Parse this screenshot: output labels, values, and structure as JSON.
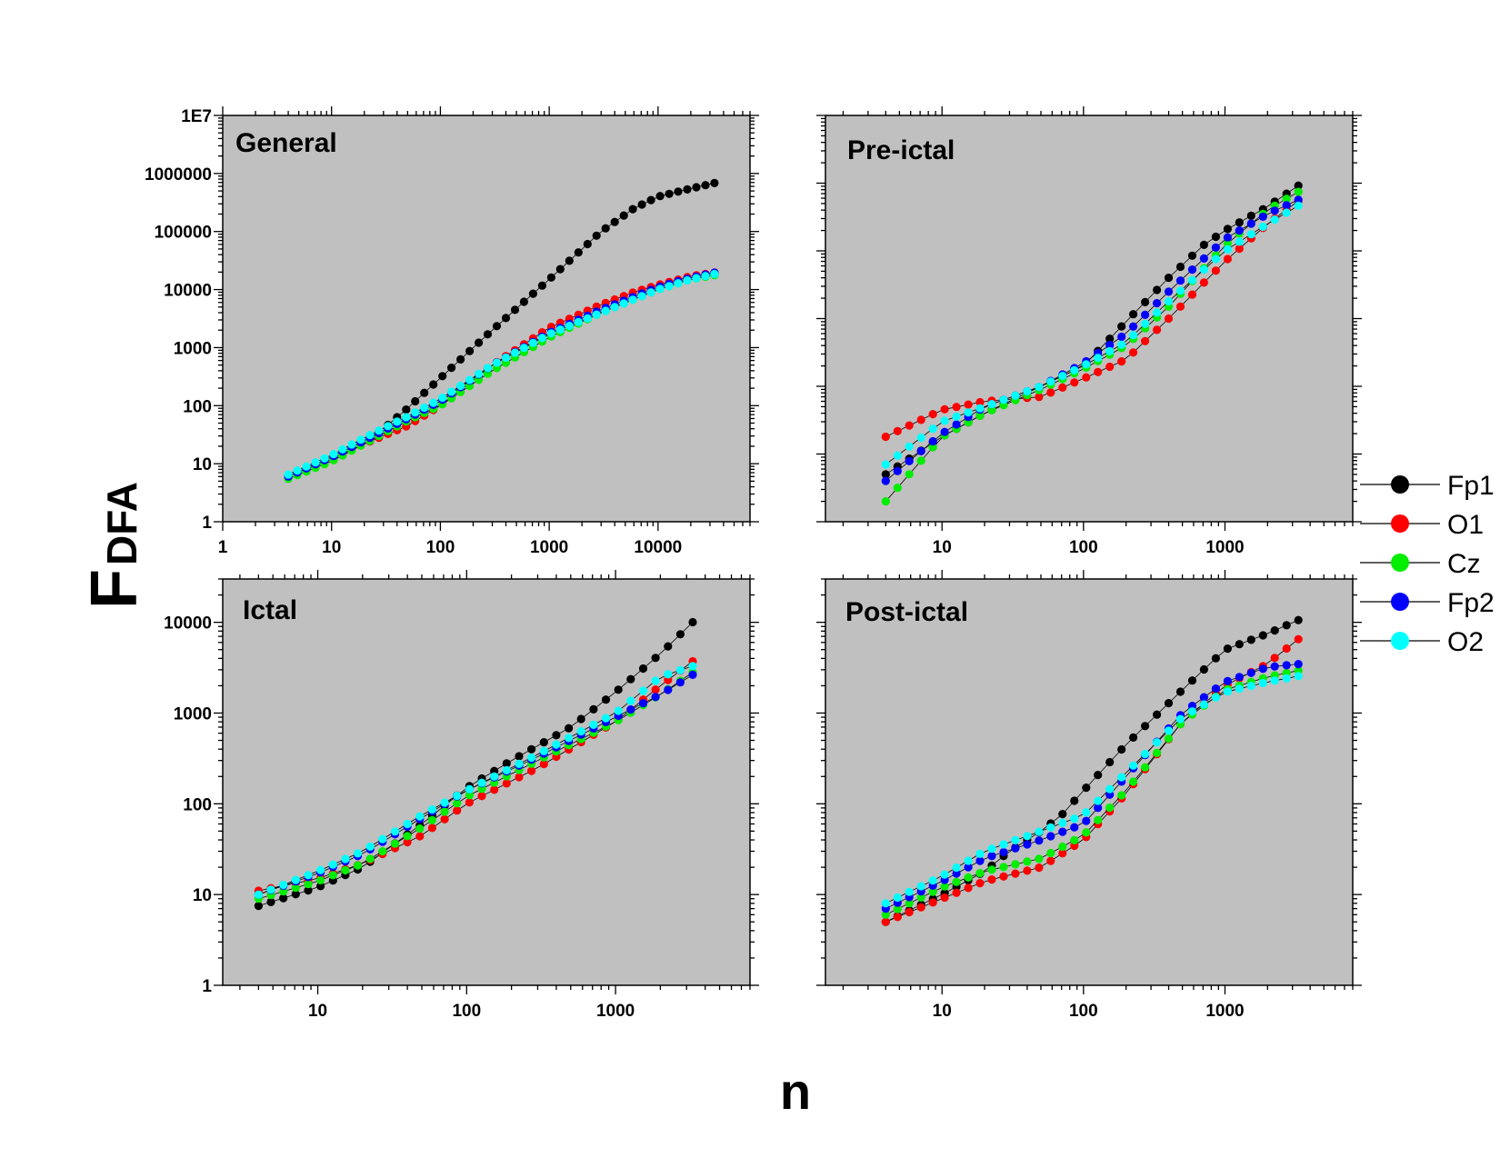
{
  "figure": {
    "ylabel": "F",
    "ylabel_sub": "DFA",
    "xlabel": "n",
    "series_colors": {
      "Fp1": "#000000",
      "O1": "#ff0000",
      "Cz": "#00ee00",
      "Fp2": "#0000ff",
      "O2": "#00ffff"
    },
    "panel_background": "#c0c0c0"
  },
  "legend": {
    "items": [
      {
        "label": "Fp1",
        "color": "#000000"
      },
      {
        "label": "O1",
        "color": "#ff0000"
      },
      {
        "label": "Cz",
        "color": "#00ee00"
      },
      {
        "label": "Fp2",
        "color": "#0000ff"
      },
      {
        "label": "O2",
        "color": "#00ffff"
      }
    ],
    "placement": "right"
  },
  "chart_data": [
    {
      "type": "scatter",
      "title": "General",
      "xscale": "log",
      "yscale": "log",
      "xlim": [
        1,
        70000
      ],
      "ylim": [
        1,
        10000000
      ],
      "xticks": [
        1,
        10,
        100,
        1000,
        10000
      ],
      "xtick_labels": [
        "1",
        "10",
        "100",
        "1000",
        "10000"
      ],
      "yticks": [
        1,
        10,
        100,
        1000,
        10000,
        100000,
        1000000,
        10000000
      ],
      "ytick_labels": [
        "1",
        "10",
        "100",
        "1000",
        "10000",
        "100000",
        "1000000",
        "1E7"
      ],
      "xrange": [
        4,
        35000
      ],
      "series": [
        {
          "name": "Fp1",
          "anchors": [
            [
              4,
              6
            ],
            [
              10,
              13
            ],
            [
              20,
              25
            ],
            [
              30,
              40
            ],
            [
              50,
              90
            ],
            [
              100,
              300
            ],
            [
              300,
              2000
            ],
            [
              1000,
              15000
            ],
            [
              3000,
              100000
            ],
            [
              6000,
              250000
            ],
            [
              10000,
              400000
            ],
            [
              20000,
              550000
            ],
            [
              35000,
              700000
            ]
          ]
        },
        {
          "name": "O1",
          "anchors": [
            [
              4,
              6
            ],
            [
              10,
              12
            ],
            [
              20,
              22
            ],
            [
              50,
              45
            ],
            [
              100,
              100
            ],
            [
              300,
              500
            ],
            [
              1000,
              2200
            ],
            [
              3000,
              5500
            ],
            [
              6000,
              9000
            ],
            [
              10000,
              12000
            ],
            [
              20000,
              17000
            ],
            [
              35000,
              20000
            ]
          ]
        },
        {
          "name": "Cz",
          "anchors": [
            [
              4,
              5.5
            ],
            [
              10,
              11
            ],
            [
              20,
              22
            ],
            [
              50,
              55
            ],
            [
              100,
              100
            ],
            [
              300,
              400
            ],
            [
              1000,
              1500
            ],
            [
              3000,
              4000
            ],
            [
              10000,
              10000
            ],
            [
              20000,
              15000
            ],
            [
              35000,
              18000
            ]
          ]
        },
        {
          "name": "Fp2",
          "anchors": [
            [
              4,
              6
            ],
            [
              10,
              13
            ],
            [
              20,
              25
            ],
            [
              50,
              60
            ],
            [
              100,
              120
            ],
            [
              300,
              500
            ],
            [
              1000,
              1800
            ],
            [
              3000,
              4500
            ],
            [
              10000,
              11000
            ],
            [
              20000,
              16000
            ],
            [
              35000,
              20000
            ]
          ]
        },
        {
          "name": "O2",
          "anchors": [
            [
              4,
              6.5
            ],
            [
              10,
              14
            ],
            [
              20,
              28
            ],
            [
              50,
              65
            ],
            [
              100,
              130
            ],
            [
              300,
              500
            ],
            [
              1000,
              1700
            ],
            [
              3000,
              4000
            ],
            [
              10000,
              10000
            ],
            [
              20000,
              15000
            ],
            [
              35000,
              19000
            ]
          ]
        }
      ]
    },
    {
      "type": "scatter",
      "title": "Pre-ictal",
      "xscale": "log",
      "yscale": "log",
      "xlim": [
        1.5,
        8000
      ],
      "ylim": [
        1,
        1000000
      ],
      "xticks": [
        10,
        100,
        1000
      ],
      "xtick_labels": [
        "10",
        "100",
        "1000"
      ],
      "yticks": [
        10,
        1000,
        100000
      ],
      "ytick_labels": [
        "",
        "",
        ""
      ],
      "xrange": [
        4,
        3500
      ],
      "series": [
        {
          "name": "Fp1",
          "anchors": [
            [
              4,
              5
            ],
            [
              10,
              18
            ],
            [
              20,
              40
            ],
            [
              30,
              60
            ],
            [
              50,
              100
            ],
            [
              100,
              200
            ],
            [
              200,
              900
            ],
            [
              400,
              4000
            ],
            [
              700,
              12000
            ],
            [
              1000,
              20000
            ],
            [
              2000,
              45000
            ],
            [
              3500,
              100000
            ]
          ]
        },
        {
          "name": "O1",
          "anchors": [
            [
              4,
              18
            ],
            [
              10,
              45
            ],
            [
              20,
              60
            ],
            [
              50,
              70
            ],
            [
              100,
              130
            ],
            [
              200,
              250
            ],
            [
              400,
              1000
            ],
            [
              1000,
              7000
            ],
            [
              2000,
              25000
            ],
            [
              3500,
              60000
            ]
          ]
        },
        {
          "name": "Cz",
          "anchors": [
            [
              4,
              2
            ],
            [
              10,
              18
            ],
            [
              20,
              40
            ],
            [
              50,
              90
            ],
            [
              100,
              180
            ],
            [
              200,
              400
            ],
            [
              400,
              1500
            ],
            [
              1000,
              12000
            ],
            [
              2000,
              40000
            ],
            [
              3500,
              80000
            ]
          ]
        },
        {
          "name": "Fp2",
          "anchors": [
            [
              4,
              4
            ],
            [
              10,
              20
            ],
            [
              20,
              50
            ],
            [
              50,
              100
            ],
            [
              100,
              220
            ],
            [
              200,
              600
            ],
            [
              400,
              2500
            ],
            [
              1000,
              15000
            ],
            [
              2000,
              35000
            ],
            [
              3500,
              60000
            ]
          ]
        },
        {
          "name": "O2",
          "anchors": [
            [
              4,
              7
            ],
            [
              10,
              30
            ],
            [
              20,
              50
            ],
            [
              50,
              100
            ],
            [
              100,
              200
            ],
            [
              200,
              450
            ],
            [
              400,
              1800
            ],
            [
              1000,
              10000
            ],
            [
              2000,
              25000
            ],
            [
              3500,
              50000
            ]
          ]
        }
      ]
    },
    {
      "type": "scatter",
      "title": "Ictal",
      "xscale": "log",
      "yscale": "log",
      "xlim": [
        2.3,
        8000
      ],
      "ylim": [
        1,
        30000
      ],
      "xticks": [
        10,
        100,
        1000
      ],
      "xtick_labels": [
        "10",
        "100",
        "1000"
      ],
      "yticks": [
        1,
        10,
        100,
        1000,
        10000
      ],
      "ytick_labels": [
        "1",
        "10",
        "100",
        "1000",
        "10000"
      ],
      "xrange": [
        4,
        3500
      ],
      "series": [
        {
          "name": "Fp1",
          "anchors": [
            [
              4,
              7.5
            ],
            [
              10,
              12
            ],
            [
              20,
              20
            ],
            [
              50,
              60
            ],
            [
              100,
              150
            ],
            [
              200,
              300
            ],
            [
              500,
              700
            ],
            [
              1000,
              1700
            ],
            [
              2000,
              4500
            ],
            [
              3500,
              11000
            ]
          ]
        },
        {
          "name": "O1",
          "anchors": [
            [
              4,
              11
            ],
            [
              10,
              15
            ],
            [
              20,
              22
            ],
            [
              50,
              45
            ],
            [
              100,
              100
            ],
            [
              300,
              250
            ],
            [
              1000,
              800
            ],
            [
              2000,
              2000
            ],
            [
              3500,
              4000
            ]
          ]
        },
        {
          "name": "Cz",
          "anchors": [
            [
              4,
              9
            ],
            [
              10,
              14
            ],
            [
              20,
              22
            ],
            [
              50,
              55
            ],
            [
              100,
              120
            ],
            [
              300,
              300
            ],
            [
              1000,
              800
            ],
            [
              2000,
              1600
            ],
            [
              3500,
              3000
            ]
          ]
        },
        {
          "name": "Fp2",
          "anchors": [
            [
              4,
              10
            ],
            [
              10,
              17
            ],
            [
              20,
              28
            ],
            [
              50,
              70
            ],
            [
              100,
              140
            ],
            [
              300,
              330
            ],
            [
              1000,
              900
            ],
            [
              2000,
              1600
            ],
            [
              3500,
              2800
            ]
          ]
        },
        {
          "name": "O2",
          "anchors": [
            [
              4,
              10
            ],
            [
              10,
              18
            ],
            [
              20,
              30
            ],
            [
              50,
              75
            ],
            [
              100,
              140
            ],
            [
              300,
              350
            ],
            [
              1000,
              1000
            ],
            [
              2000,
              2500
            ],
            [
              3500,
              3400
            ]
          ]
        }
      ]
    },
    {
      "type": "scatter",
      "title": "Post-ictal",
      "xscale": "log",
      "yscale": "log",
      "xlim": [
        1.5,
        8000
      ],
      "ylim": [
        1,
        30000
      ],
      "xticks": [
        10,
        100,
        1000
      ],
      "xtick_labels": [
        "10",
        "100",
        "1000"
      ],
      "yticks": [
        10,
        1000
      ],
      "ytick_labels": [
        "",
        ""
      ],
      "xrange": [
        4,
        3500
      ],
      "series": [
        {
          "name": "Fp1",
          "anchors": [
            [
              4,
              5
            ],
            [
              10,
              10
            ],
            [
              20,
              18
            ],
            [
              30,
              30
            ],
            [
              50,
              50
            ],
            [
              70,
              75
            ],
            [
              100,
              140
            ],
            [
              200,
              450
            ],
            [
              500,
              1800
            ],
            [
              1000,
              5000
            ],
            [
              2000,
              7500
            ],
            [
              3500,
              11000
            ]
          ]
        },
        {
          "name": "O1",
          "anchors": [
            [
              4,
              5
            ],
            [
              10,
              9
            ],
            [
              20,
              14
            ],
            [
              50,
              20
            ],
            [
              100,
              40
            ],
            [
              200,
              130
            ],
            [
              500,
              800
            ],
            [
              1000,
              2000
            ],
            [
              2000,
              3500
            ],
            [
              3500,
              7000
            ]
          ]
        },
        {
          "name": "Cz",
          "anchors": [
            [
              4,
              6
            ],
            [
              10,
              12
            ],
            [
              20,
              18
            ],
            [
              50,
              25
            ],
            [
              100,
              45
            ],
            [
              200,
              140
            ],
            [
              500,
              800
            ],
            [
              1000,
              1800
            ],
            [
              2000,
              2500
            ],
            [
              3500,
              3000
            ]
          ]
        },
        {
          "name": "Fp2",
          "anchors": [
            [
              4,
              7
            ],
            [
              10,
              14
            ],
            [
              20,
              25
            ],
            [
              50,
              40
            ],
            [
              100,
              60
            ],
            [
              200,
              200
            ],
            [
              500,
              1000
            ],
            [
              1000,
              2200
            ],
            [
              2000,
              3200
            ],
            [
              3500,
              3500
            ]
          ]
        },
        {
          "name": "O2",
          "anchors": [
            [
              4,
              8
            ],
            [
              10,
              16
            ],
            [
              20,
              30
            ],
            [
              50,
              50
            ],
            [
              100,
              75
            ],
            [
              200,
              220
            ],
            [
              500,
              900
            ],
            [
              1000,
              1700
            ],
            [
              2000,
              2200
            ],
            [
              3500,
              2600
            ]
          ]
        }
      ]
    }
  ]
}
